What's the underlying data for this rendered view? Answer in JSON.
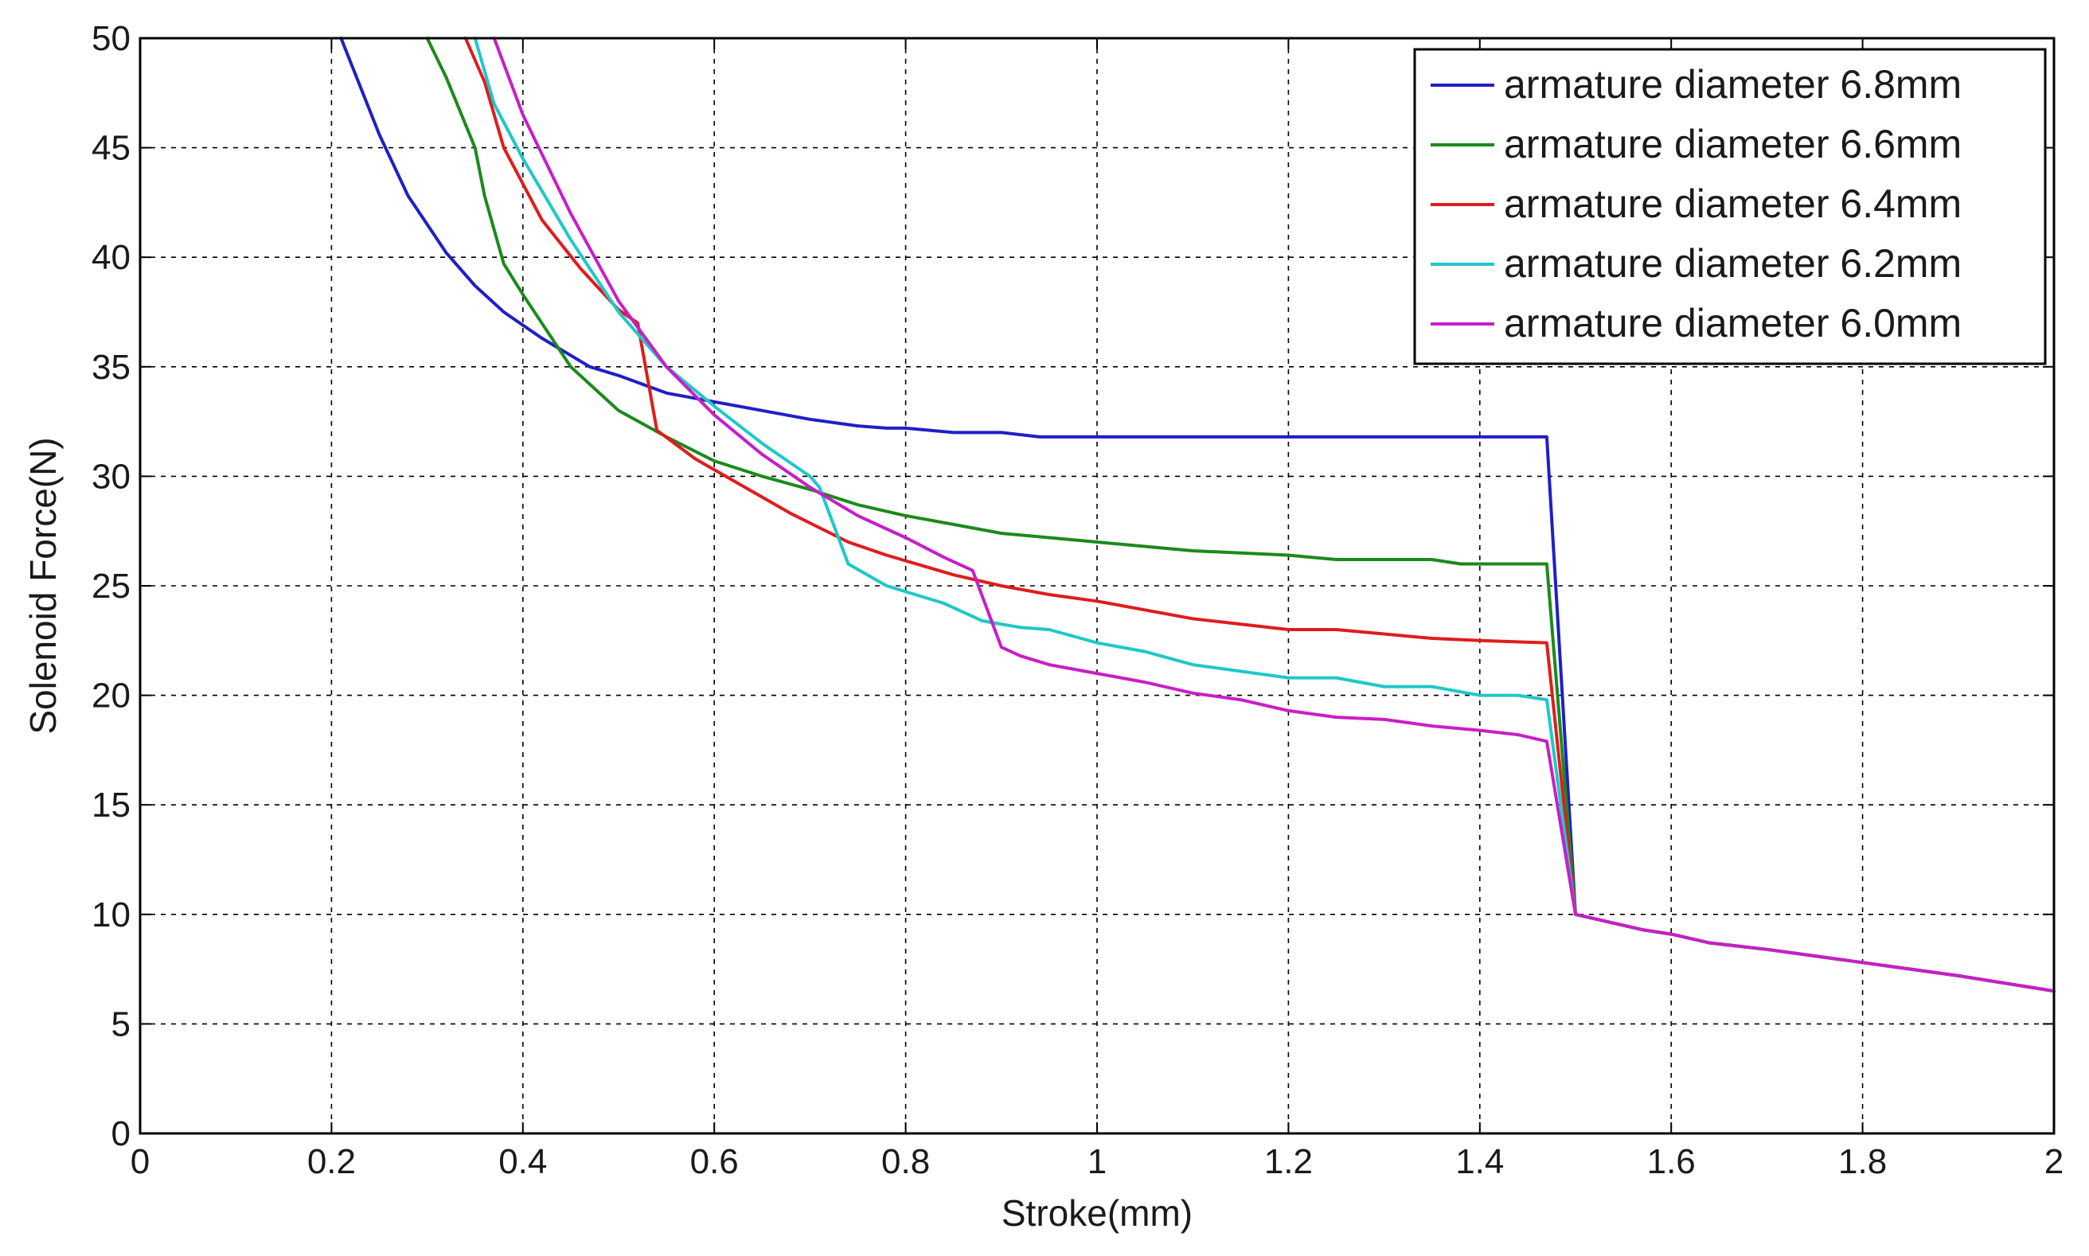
{
  "chart_data": {
    "type": "line",
    "title": "",
    "xlabel": "Stroke(mm)",
    "ylabel": "Solenoid Force(N)",
    "xlim": [
      0,
      2
    ],
    "ylim": [
      0,
      50
    ],
    "xticks": [
      0,
      0.2,
      0.4,
      0.6,
      0.8,
      1,
      1.2,
      1.4,
      1.6,
      1.8,
      2
    ],
    "yticks": [
      0,
      5,
      10,
      15,
      20,
      25,
      30,
      35,
      40,
      45,
      50
    ],
    "xtick_labels": [
      "0",
      "0.2",
      "0.4",
      "0.6",
      "0.8",
      "1",
      "1.2",
      "1.4",
      "1.6",
      "1.8",
      "2"
    ],
    "ytick_labels": [
      "0",
      "5",
      "10",
      "15",
      "20",
      "25",
      "30",
      "35",
      "40",
      "45",
      "50"
    ],
    "grid": true,
    "legend_position": "top-right",
    "series": [
      {
        "name": "armature diameter 6.8mm",
        "color": "#1f1fc8",
        "x": [
          0.21,
          0.25,
          0.28,
          0.32,
          0.35,
          0.38,
          0.42,
          0.47,
          0.5,
          0.55,
          0.6,
          0.65,
          0.7,
          0.75,
          0.78,
          0.8,
          0.85,
          0.9,
          0.94,
          1.0,
          1.1,
          1.2,
          1.3,
          1.4,
          1.47,
          1.5,
          1.53,
          1.57,
          1.6,
          1.64,
          1.7,
          1.8,
          1.9,
          2.0
        ],
        "y": [
          50,
          45.6,
          42.8,
          40.2,
          38.7,
          37.5,
          36.3,
          35.0,
          34.6,
          33.8,
          33.4,
          33.0,
          32.6,
          32.3,
          32.2,
          32.2,
          32.0,
          32.0,
          31.8,
          31.8,
          31.8,
          31.8,
          31.8,
          31.8,
          31.8,
          10.0,
          9.7,
          9.3,
          9.1,
          8.7,
          8.4,
          7.8,
          7.2,
          6.5
        ]
      },
      {
        "name": "armature diameter 6.6mm",
        "color": "#1b8a1b",
        "x": [
          0.3,
          0.32,
          0.35,
          0.36,
          0.38,
          0.4,
          0.45,
          0.5,
          0.55,
          0.6,
          0.65,
          0.7,
          0.75,
          0.78,
          0.8,
          0.85,
          0.9,
          0.95,
          1.0,
          1.05,
          1.1,
          1.2,
          1.25,
          1.3,
          1.35,
          1.38,
          1.4,
          1.47,
          1.5,
          1.53,
          1.57,
          1.6,
          1.64,
          1.7,
          1.8,
          1.9,
          2.0
        ],
        "y": [
          50,
          48.2,
          45.0,
          42.8,
          39.7,
          38.3,
          35.0,
          33.0,
          31.8,
          30.7,
          30.0,
          29.4,
          28.7,
          28.4,
          28.2,
          27.8,
          27.4,
          27.2,
          27.0,
          26.8,
          26.6,
          26.4,
          26.2,
          26.2,
          26.2,
          26.0,
          26.0,
          26.0,
          10.0,
          9.7,
          9.3,
          9.1,
          8.7,
          8.4,
          7.8,
          7.2,
          6.5
        ]
      },
      {
        "name": "armature diameter 6.4mm",
        "color": "#e01c1c",
        "x": [
          0.34,
          0.36,
          0.38,
          0.42,
          0.46,
          0.5,
          0.52,
          0.54,
          0.58,
          0.62,
          0.68,
          0.74,
          0.78,
          0.85,
          0.9,
          0.95,
          1.0,
          1.1,
          1.2,
          1.25,
          1.3,
          1.35,
          1.4,
          1.47,
          1.5,
          1.53,
          1.57,
          1.6,
          1.64,
          1.7,
          1.8,
          1.9,
          2.0
        ],
        "y": [
          50,
          48.0,
          45.0,
          41.7,
          39.5,
          37.6,
          37.0,
          32.1,
          30.8,
          29.8,
          28.3,
          27.0,
          26.4,
          25.5,
          25.0,
          24.6,
          24.3,
          23.5,
          23.0,
          23.0,
          22.8,
          22.6,
          22.5,
          22.4,
          10.0,
          9.7,
          9.3,
          9.1,
          8.7,
          8.4,
          7.8,
          7.2,
          6.5
        ]
      },
      {
        "name": "armature diameter 6.2mm",
        "color": "#1fc8c8",
        "x": [
          0.35,
          0.37,
          0.4,
          0.45,
          0.5,
          0.55,
          0.6,
          0.65,
          0.7,
          0.71,
          0.74,
          0.78,
          0.84,
          0.88,
          0.92,
          0.95,
          1.0,
          1.05,
          1.1,
          1.2,
          1.25,
          1.3,
          1.35,
          1.4,
          1.44,
          1.47,
          1.5,
          1.53,
          1.57,
          1.6,
          1.64,
          1.7,
          1.8,
          1.9,
          2.0
        ],
        "y": [
          50,
          47.0,
          44.5,
          40.8,
          37.5,
          35.0,
          33.2,
          31.5,
          30.0,
          29.5,
          26.0,
          25.0,
          24.2,
          23.4,
          23.1,
          23.0,
          22.4,
          22.0,
          21.4,
          20.8,
          20.8,
          20.4,
          20.4,
          20.0,
          20.0,
          19.8,
          10.0,
          9.7,
          9.3,
          9.1,
          8.7,
          8.4,
          7.8,
          7.2,
          6.5
        ]
      },
      {
        "name": "armature diameter 6.0mm",
        "color": "#c81ec8",
        "x": [
          0.37,
          0.4,
          0.45,
          0.5,
          0.55,
          0.6,
          0.65,
          0.7,
          0.75,
          0.8,
          0.84,
          0.87,
          0.9,
          0.92,
          0.95,
          1.0,
          1.05,
          1.1,
          1.15,
          1.2,
          1.25,
          1.3,
          1.35,
          1.4,
          1.44,
          1.47,
          1.5,
          1.53,
          1.57,
          1.6,
          1.64,
          1.7,
          1.8,
          1.9,
          2.0
        ],
        "y": [
          50,
          46.5,
          42.0,
          38.0,
          35.0,
          32.8,
          31.0,
          29.5,
          28.2,
          27.2,
          26.3,
          25.7,
          22.2,
          21.8,
          21.4,
          21.0,
          20.6,
          20.1,
          19.8,
          19.3,
          19.0,
          18.9,
          18.6,
          18.4,
          18.2,
          17.9,
          10.0,
          9.7,
          9.3,
          9.1,
          8.7,
          8.4,
          7.8,
          7.2,
          6.5
        ]
      }
    ]
  }
}
